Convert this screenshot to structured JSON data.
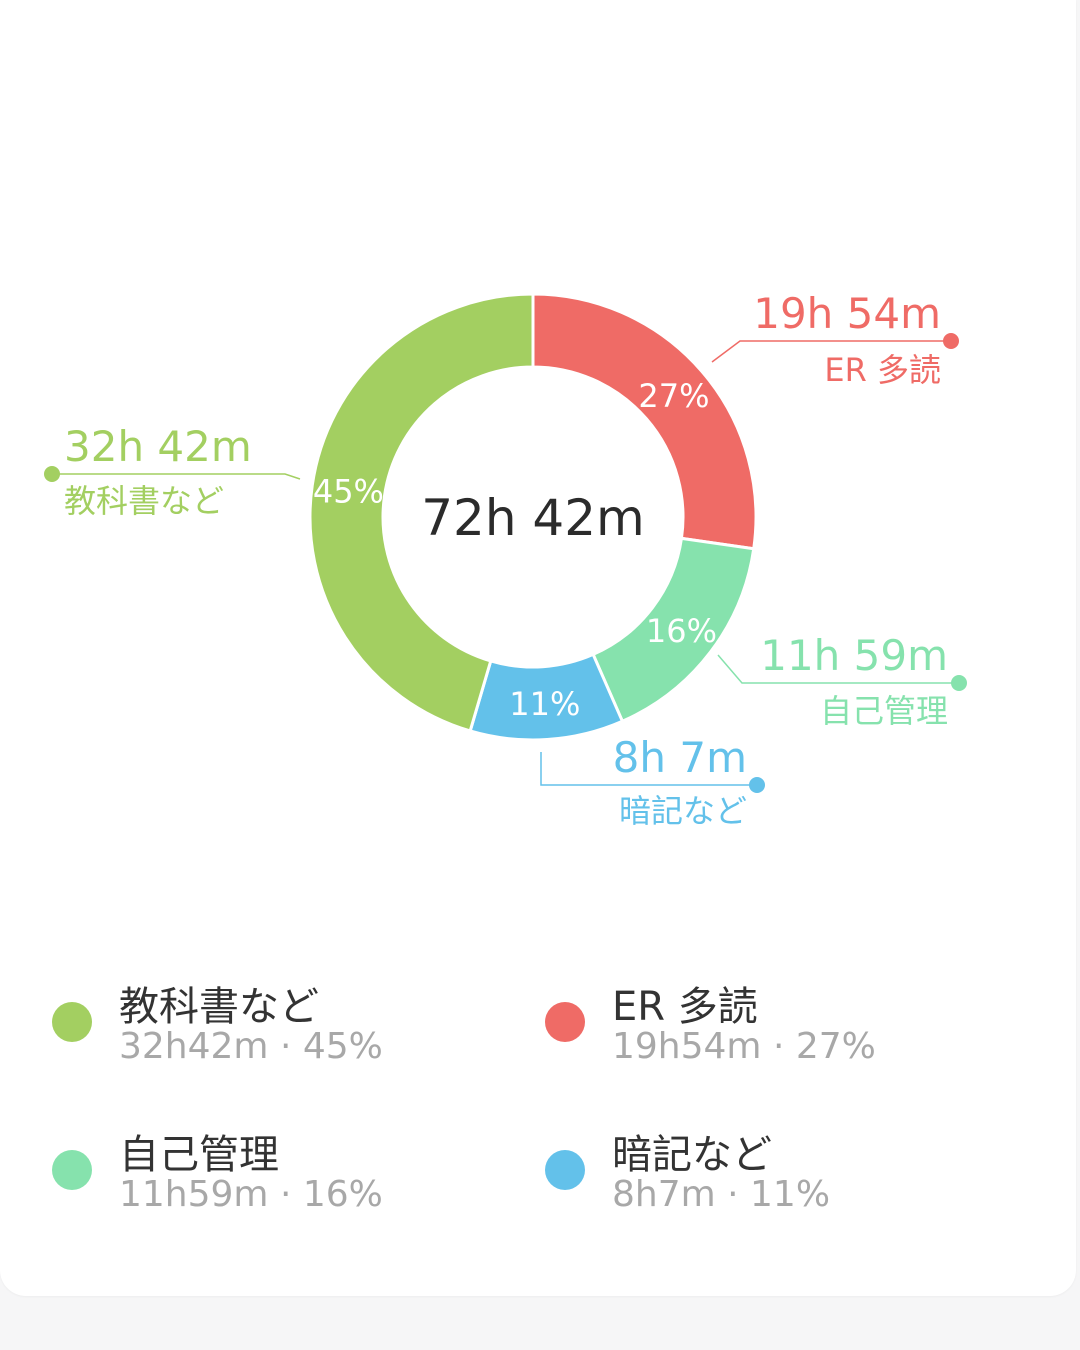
{
  "chart_data": {
    "type": "pie",
    "variant": "donut",
    "center_label": "72h  42m",
    "slices": [
      {
        "category": "ER 多読",
        "time_label": "19h  54m",
        "percent": 27,
        "percent_label": "27%",
        "color": "#ef6b66"
      },
      {
        "category": "自己管理",
        "time_label": "11h  59m",
        "percent": 16,
        "percent_label": "16%",
        "color": "#86e2ad"
      },
      {
        "category": "暗記など",
        "time_label": "8h  7m",
        "percent": 11,
        "percent_label": "11%",
        "color": "#63c1ea"
      },
      {
        "category": "教科書など",
        "time_label": "32h  42m",
        "percent": 45,
        "percent_label": "45%",
        "color": "#a3cf61"
      }
    ]
  },
  "legend": {
    "items": [
      {
        "name": "教科書など",
        "value": "32h42m · 45%",
        "color": "#a3cf61"
      },
      {
        "name": "ER 多読",
        "value": "19h54m · 27%",
        "color": "#ef6b66"
      },
      {
        "name": "自己管理",
        "value": "11h59m · 16%",
        "color": "#86e2ad"
      },
      {
        "name": "暗記など",
        "value": "8h7m · 11%",
        "color": "#63c1ea"
      }
    ]
  }
}
